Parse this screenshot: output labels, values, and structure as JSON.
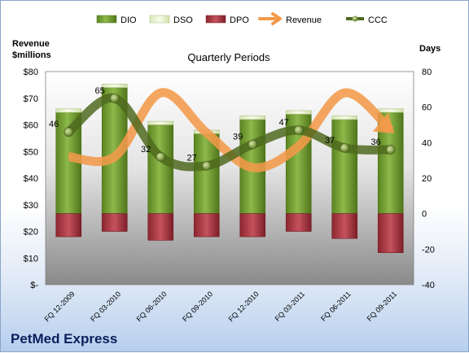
{
  "chart_data": {
    "type": "bar",
    "title": "Quarterly Periods",
    "brand": "PetMed Express",
    "left_axis": {
      "title_line1": "Revenue",
      "title_line2": "$millions",
      "min": 0,
      "max": 80,
      "step": 10,
      "tick_labels": [
        "$-",
        "$10",
        "$20",
        "$30",
        "$40",
        "$50",
        "$60",
        "$70",
        "$80"
      ]
    },
    "right_axis": {
      "title": "Days",
      "min": -40,
      "max": 80,
      "step": 20,
      "tick_labels": [
        "-40",
        "-20",
        "0",
        "20",
        "40",
        "60",
        "80"
      ]
    },
    "categories": [
      "FQ 12-2009",
      "FQ 03-2010",
      "FQ 06-2010",
      "FQ 09-2010",
      "FQ 12-2010",
      "FQ 03-2011",
      "FQ 06-2011",
      "FQ 09-2011"
    ],
    "series": [
      {
        "name": "DIO",
        "kind": "stacked-bar",
        "axis": "right",
        "color": "#6e9a2a",
        "values": [
          57,
          71,
          50,
          45,
          53,
          56,
          53,
          57
        ]
      },
      {
        "name": "DSO",
        "kind": "stacked-bar",
        "axis": "right",
        "color": "#e9f2d2",
        "values": [
          2,
          2,
          2,
          2,
          2,
          2,
          2,
          2
        ]
      },
      {
        "name": "DPO",
        "kind": "negative-bar",
        "axis": "right",
        "color": "#a8343f",
        "values": [
          -13,
          -10,
          -15,
          -13,
          -13,
          -10,
          -14,
          -22
        ]
      },
      {
        "name": "Revenue",
        "kind": "line",
        "axis": "left",
        "color": "#f39a4a",
        "values": [
          48,
          48,
          72,
          57,
          44,
          52,
          72,
          58
        ]
      },
      {
        "name": "CCC",
        "kind": "line",
        "axis": "right",
        "color": "#4f6a1e",
        "values": [
          46,
          65,
          32,
          27,
          39,
          47,
          37,
          36
        ],
        "labels": [
          "46",
          "65",
          "32",
          "27",
          "39",
          "47",
          "37",
          "36"
        ]
      }
    ],
    "legend_position": "top",
    "grid": false
  }
}
